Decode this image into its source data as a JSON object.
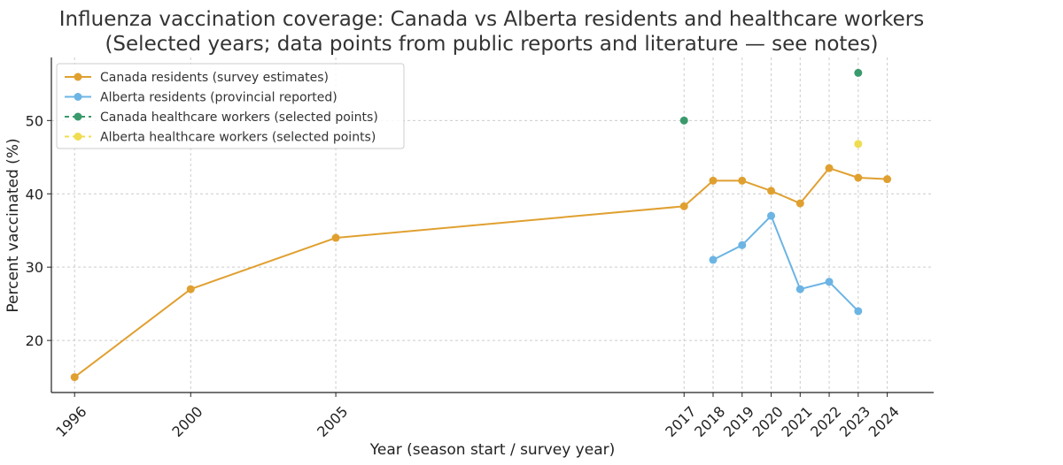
{
  "chart_data": {
    "type": "line",
    "title": "Influenza vaccination coverage: Canada vs Alberta residents and healthcare workers",
    "subtitle": "(Selected years; data points from public reports and literature — see notes)",
    "xlabel": "Year (season start / survey year)",
    "ylabel": "Percent vaccinated (%)",
    "x_ticks": [
      1996,
      2000,
      2005,
      2017,
      2018,
      2019,
      2020,
      2021,
      2022,
      2023,
      2024
    ],
    "y_ticks": [
      20,
      30,
      40,
      50
    ],
    "xlim": [
      1995.2,
      2025.6
    ],
    "ylim": [
      12.9,
      58.6
    ],
    "grid": true,
    "legend_position": "top-left",
    "series": [
      {
        "name": "Canada residents (survey estimates)",
        "color": "#e0a030",
        "line": "solid",
        "x": [
          1996,
          2000,
          2005,
          2017,
          2018,
          2019,
          2020,
          2021,
          2022,
          2023,
          2024
        ],
        "y": [
          15,
          27,
          34,
          38.3,
          41.8,
          41.8,
          40.4,
          38.7,
          43.5,
          42.2,
          42
        ]
      },
      {
        "name": "Alberta residents (provincial reported)",
        "color": "#6cb4e4",
        "line": "solid",
        "x": [
          2018,
          2019,
          2020,
          2021,
          2022,
          2023
        ],
        "y": [
          31,
          33,
          37,
          27,
          28,
          24
        ]
      },
      {
        "name": "Canada healthcare workers (selected points)",
        "color": "#3a9a6c",
        "line": "dashed",
        "x": [
          2017,
          2023
        ],
        "y": [
          50,
          56.5
        ]
      },
      {
        "name": "Alberta healthcare workers (selected points)",
        "color": "#f0dc50",
        "line": "dashed",
        "x": [
          2023
        ],
        "y": [
          46.8
        ]
      }
    ]
  }
}
